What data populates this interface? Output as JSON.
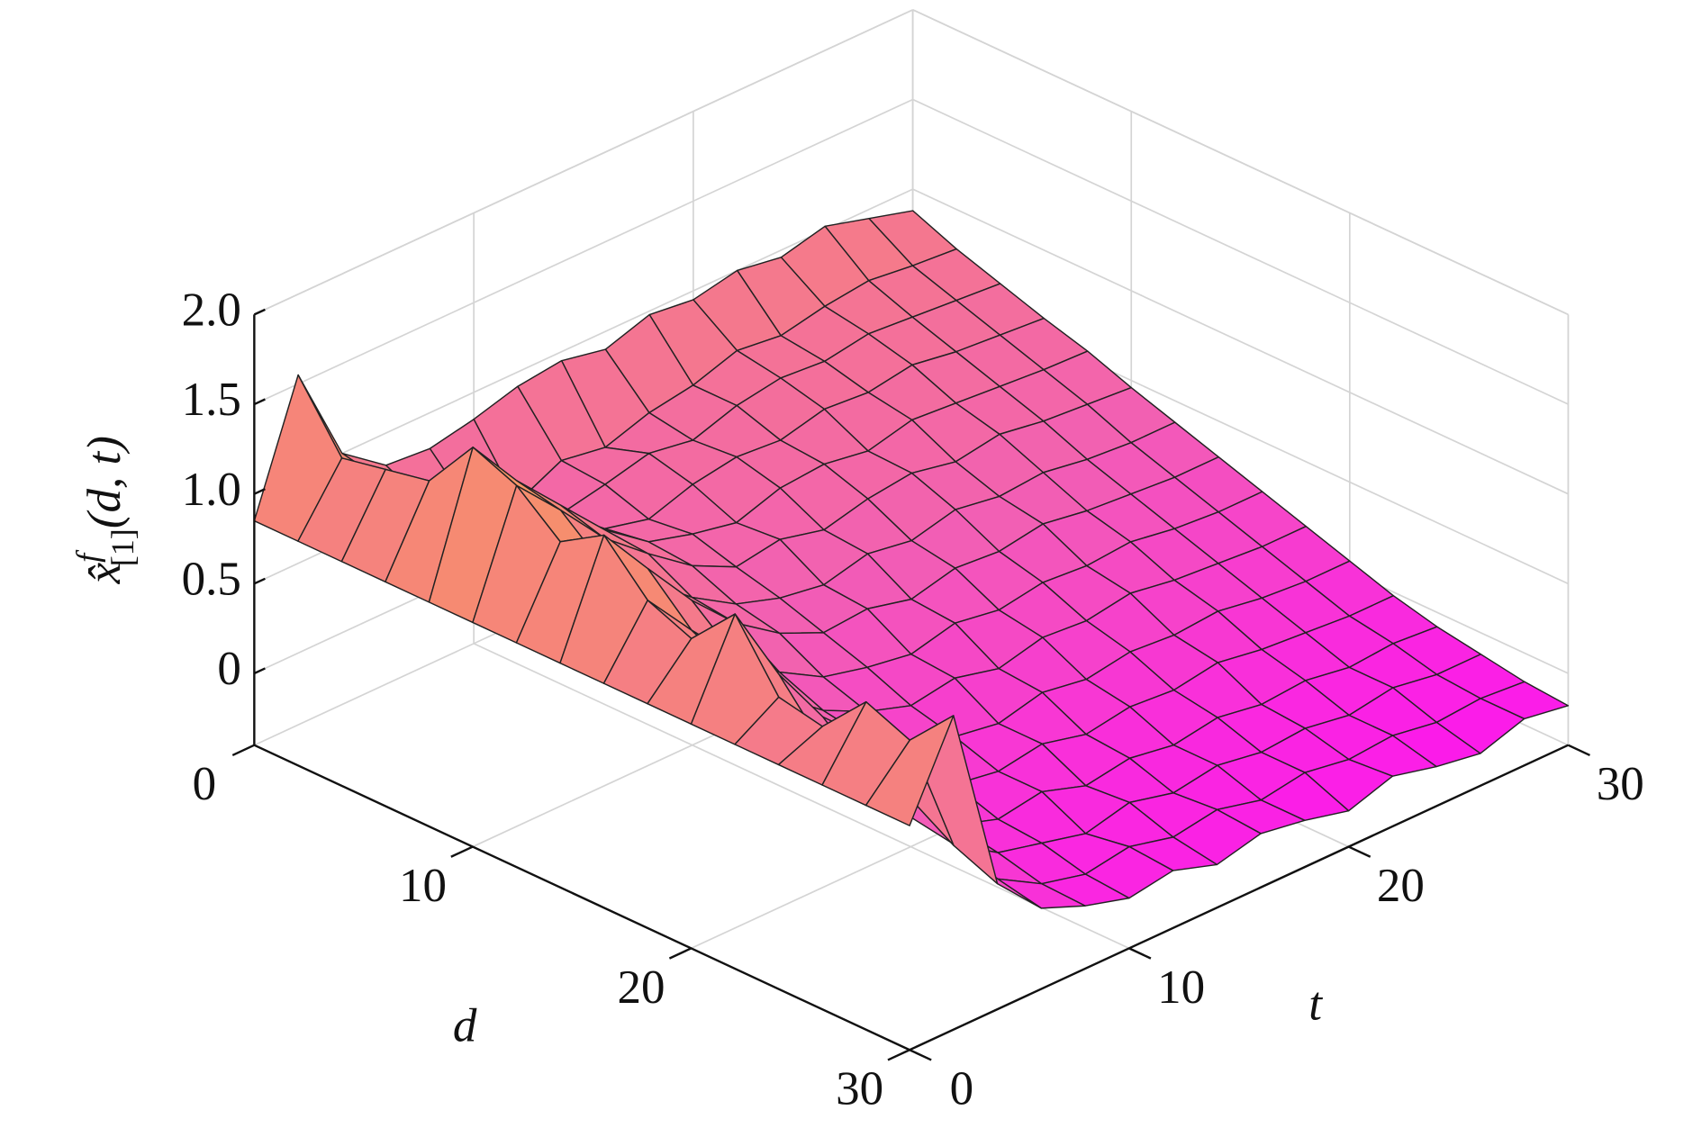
{
  "chart_data": {
    "type": "surface",
    "zlabel": {
      "base": "x̂",
      "sup": "f",
      "sub": "[1]",
      "args": "(d, t)"
    },
    "dlabel": "d",
    "tlabel": "t",
    "dlim": [
      0,
      30
    ],
    "tlim": [
      0,
      30
    ],
    "zlim": [
      -0.4,
      2.0
    ],
    "dticks": [
      0,
      10,
      20,
      30
    ],
    "tticks": [
      0,
      10,
      20,
      30
    ],
    "zticks": [
      0,
      0.5,
      {
        "value": 1,
        "label": "1.0"
      },
      1.5,
      {
        "value": 2,
        "label": "2.0"
      }
    ],
    "grid": true,
    "colormap": [
      "#ff00ff",
      "#f25fb4",
      "#f68a72",
      "#fbb648"
    ],
    "edge_color": "#222222",
    "d": [
      0,
      2,
      4,
      6,
      8,
      10,
      12,
      14,
      16,
      18,
      20,
      22,
      24,
      26,
      28,
      30
    ],
    "t": [
      0,
      2,
      4,
      6,
      8,
      10,
      12,
      14,
      16,
      18,
      20,
      22,
      24,
      26,
      28,
      30
    ],
    "z": [
      [
        0.85,
        1.55,
        1.0,
        0.82,
        0.8,
        0.85,
        0.92,
        0.95,
        0.9,
        0.98,
        0.95,
        1.0,
        0.96,
        1.02,
        0.95,
        0.88
      ],
      [
        0.85,
        1.2,
        0.95,
        0.7,
        0.55,
        0.5,
        0.62,
        0.58,
        0.66,
        0.7,
        0.78,
        0.75,
        0.8,
        0.83,
        0.8,
        0.78
      ],
      [
        0.85,
        1.25,
        1.05,
        0.8,
        0.62,
        0.55,
        0.6,
        0.66,
        0.62,
        0.7,
        0.74,
        0.72,
        0.76,
        0.74,
        0.72,
        0.7
      ],
      [
        0.85,
        1.3,
        1.1,
        0.85,
        0.7,
        0.58,
        0.52,
        0.6,
        0.64,
        0.62,
        0.68,
        0.66,
        0.7,
        0.66,
        0.64,
        0.62
      ],
      [
        0.85,
        1.6,
        1.3,
        1.05,
        0.8,
        0.62,
        0.55,
        0.5,
        0.58,
        0.6,
        0.56,
        0.62,
        0.6,
        0.58,
        0.56,
        0.55
      ],
      [
        0.85,
        1.5,
        1.25,
        0.98,
        0.78,
        0.6,
        0.48,
        0.52,
        0.46,
        0.52,
        0.55,
        0.5,
        0.54,
        0.5,
        0.48,
        0.46
      ],
      [
        0.85,
        1.3,
        1.05,
        0.85,
        0.65,
        0.5,
        0.42,
        0.38,
        0.44,
        0.4,
        0.46,
        0.42,
        0.44,
        0.4,
        0.38,
        0.38
      ],
      [
        0.85,
        1.45,
        1.15,
        0.86,
        0.62,
        0.45,
        0.34,
        0.36,
        0.3,
        0.36,
        0.34,
        0.38,
        0.34,
        0.32,
        0.3,
        0.3
      ],
      [
        0.85,
        1.2,
        0.92,
        0.66,
        0.46,
        0.32,
        0.26,
        0.22,
        0.28,
        0.24,
        0.28,
        0.26,
        0.28,
        0.24,
        0.22,
        0.22
      ],
      [
        0.85,
        1.1,
        0.8,
        0.55,
        0.36,
        0.24,
        0.16,
        0.2,
        0.14,
        0.2,
        0.18,
        0.22,
        0.18,
        0.16,
        0.14,
        0.14
      ],
      [
        0.85,
        1.35,
        0.9,
        0.55,
        0.32,
        0.18,
        0.1,
        0.06,
        0.12,
        0.08,
        0.12,
        0.1,
        0.12,
        0.08,
        0.06,
        0.06
      ],
      [
        0.85,
        1.0,
        0.62,
        0.34,
        0.16,
        0.06,
        0.02,
        0.06,
        0.0,
        0.04,
        0.02,
        0.06,
        0.02,
        0.0,
        -0.02,
        -0.02
      ],
      [
        0.85,
        0.95,
        0.5,
        0.22,
        0.06,
        -0.02,
        0.02,
        -0.06,
        -0.02,
        -0.06,
        -0.02,
        -0.06,
        -0.04,
        -0.08,
        -0.06,
        -0.08
      ],
      [
        0.85,
        1.2,
        0.55,
        0.18,
        0.02,
        -0.04,
        -0.1,
        -0.04,
        -0.1,
        -0.06,
        -0.1,
        -0.08,
        -0.12,
        -0.08,
        -0.12,
        -0.12
      ],
      [
        0.85,
        1.1,
        0.4,
        0.1,
        -0.04,
        -0.1,
        -0.06,
        -0.12,
        -0.08,
        -0.14,
        -0.1,
        -0.14,
        -0.12,
        -0.16,
        -0.14,
        -0.16
      ],
      [
        0.85,
        1.35,
        0.3,
        0.05,
        -0.05,
        -0.12,
        -0.08,
        -0.16,
        -0.1,
        -0.14,
        -0.2,
        -0.12,
        -0.18,
        -0.22,
        -0.14,
        -0.18
      ]
    ]
  }
}
